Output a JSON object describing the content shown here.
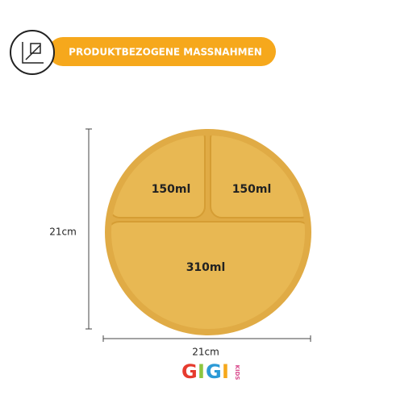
{
  "header": {
    "title": "PRODUKTBEZOGENE MASSNAHMEN"
  },
  "plate": {
    "compartments": [
      {
        "label": "150ml"
      },
      {
        "label": "150ml"
      },
      {
        "label": "310ml"
      }
    ]
  },
  "dimensions": {
    "height": "21cm",
    "width": "21cm"
  },
  "brand": {
    "letters": [
      "G",
      "I",
      "G",
      "I"
    ],
    "sub": "KIDS"
  }
}
